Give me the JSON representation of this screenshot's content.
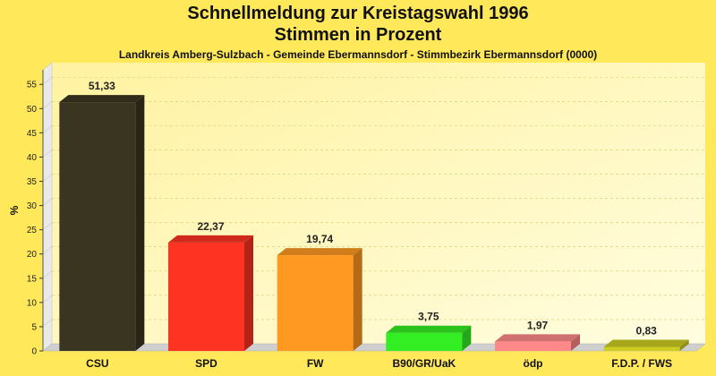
{
  "chart_data": {
    "type": "bar",
    "title": "Schnellmeldung zur Kreistagswahl 1996",
    "subtitle": "Stimmen in Prozent",
    "subsubtitle": "Landkreis Amberg-Sulzbach - Gemeinde Ebermannsdorf - Stimmbezirk Ebermannsdorf (0000)",
    "xlabel": "",
    "ylabel": "%",
    "ylim": [
      0,
      58
    ],
    "yticks": [
      0,
      5,
      10,
      15,
      20,
      25,
      30,
      35,
      40,
      45,
      50,
      55
    ],
    "grid": true,
    "categories": [
      "CSU",
      "SPD",
      "FW",
      "B90/GR/UaK",
      "ödp",
      "F.D.P. / FWS"
    ],
    "values": [
      51.33,
      22.37,
      19.74,
      3.75,
      1.97,
      0.83
    ],
    "value_labels": [
      "51,33",
      "22,37",
      "19,74",
      "3,75",
      "1,97",
      "0,83"
    ],
    "colors": [
      "#3a3520",
      "#ff3322",
      "#ff9922",
      "#33ee22",
      "#ff8888",
      "#cccc22"
    ]
  }
}
